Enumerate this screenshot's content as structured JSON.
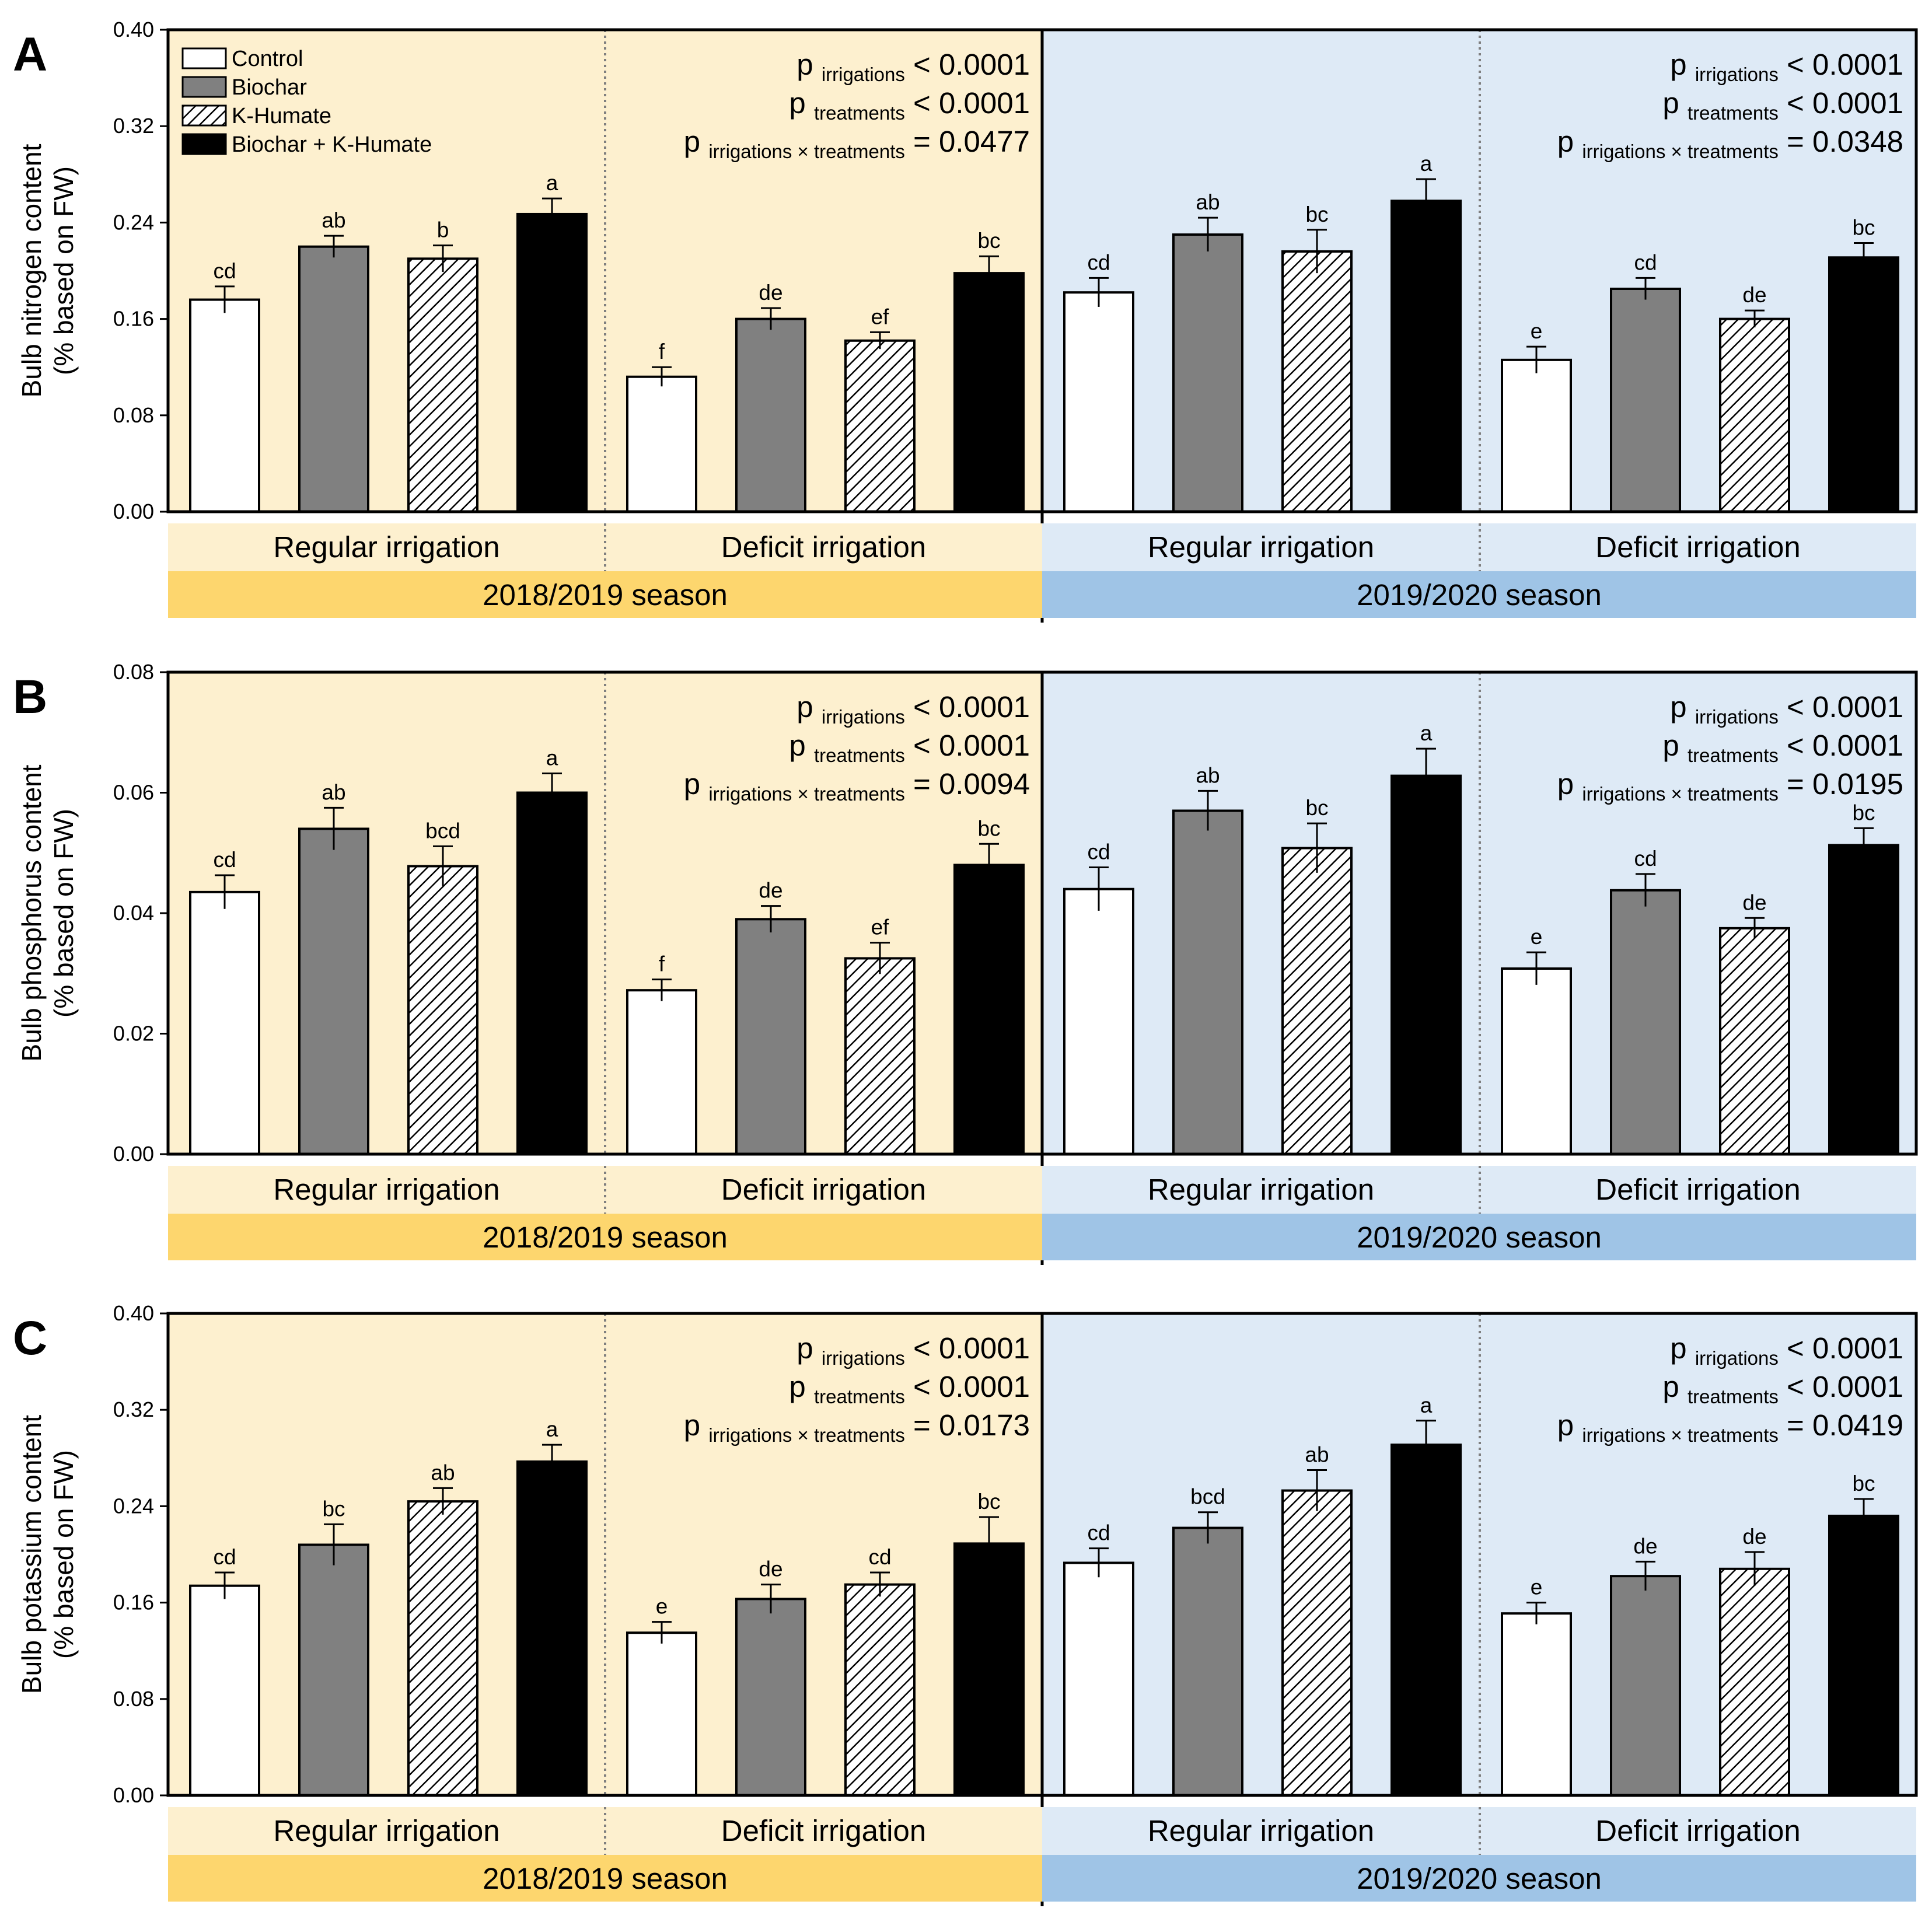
{
  "colors": {
    "season1_bg": "#fdf0cf",
    "season2_bg": "#deeaf6",
    "season1_band_light": "#fdf0cf",
    "season1_band_dark": "#fdd66e",
    "season2_band_light": "#deeaf6",
    "season2_band_dark": "#9fc4e6",
    "control": "#ffffff",
    "biochar": "#808080",
    "khumate": "#ffffff",
    "combo": "#000000"
  },
  "legend": {
    "control": "Control",
    "biochar": "Biochar",
    "khumate": "K-Humate",
    "combo": "Biochar + K-Humate"
  },
  "labels": {
    "regular": "Regular irrigation",
    "deficit": "Deficit irrigation",
    "season1": "2018/2019 season",
    "season2": "2019/2020 season",
    "p": "p",
    "sub_irr": "irrigations",
    "sub_trt": "treatments",
    "sub_int": "irrigations × treatments",
    "lt": "< 0.0001"
  },
  "chart_data": [
    {
      "type": "bar",
      "panel": "A",
      "ylabel_line1": "Bulb nitrogen content",
      "ylabel_line2": "(% based on FW)",
      "ylim": [
        0,
        0.4
      ],
      "yticks": [
        "0.00",
        "0.08",
        "0.16",
        "0.24",
        "0.32",
        "0.40"
      ],
      "series": [
        "Control",
        "Biochar",
        "K-Humate",
        "Biochar + K-Humate"
      ],
      "groups": [
        {
          "season": "2018/2019 season",
          "irrigation": "Regular irrigation",
          "values": [
            0.176,
            0.22,
            0.21,
            0.247
          ],
          "errors": [
            0.011,
            0.009,
            0.011,
            0.013
          ],
          "letters": [
            "cd",
            "ab",
            "b",
            "a"
          ]
        },
        {
          "season": "2018/2019 season",
          "irrigation": "Deficit irrigation",
          "values": [
            0.112,
            0.16,
            0.142,
            0.198
          ],
          "errors": [
            0.008,
            0.009,
            0.007,
            0.014
          ],
          "letters": [
            "f",
            "de",
            "ef",
            "bc"
          ]
        },
        {
          "season": "2019/2020 season",
          "irrigation": "Regular irrigation",
          "values": [
            0.182,
            0.23,
            0.216,
            0.258
          ],
          "errors": [
            0.012,
            0.014,
            0.018,
            0.018
          ],
          "letters": [
            "cd",
            "ab",
            "bc",
            "a"
          ]
        },
        {
          "season": "2019/2020 season",
          "irrigation": "Deficit irrigation",
          "values": [
            0.126,
            0.185,
            0.16,
            0.211
          ],
          "errors": [
            0.011,
            0.009,
            0.007,
            0.012
          ],
          "letters": [
            "e",
            "cd",
            "de",
            "bc"
          ]
        }
      ],
      "stats": [
        {
          "season": "2018/2019 season",
          "p_irrigations": "< 0.0001",
          "p_treatments": "< 0.0001",
          "p_interaction": "= 0.0477"
        },
        {
          "season": "2019/2020 season",
          "p_irrigations": "< 0.0001",
          "p_treatments": "< 0.0001",
          "p_interaction": "= 0.0348"
        }
      ]
    },
    {
      "type": "bar",
      "panel": "B",
      "ylabel_line1": "Bulb phosphorus content",
      "ylabel_line2": "(% based on FW)",
      "ylim": [
        0,
        0.08
      ],
      "yticks": [
        "0.00",
        "0.02",
        "0.04",
        "0.06",
        "0.08"
      ],
      "series": [
        "Control",
        "Biochar",
        "K-Humate",
        "Biochar + K-Humate"
      ],
      "groups": [
        {
          "season": "2018/2019 season",
          "irrigation": "Regular irrigation",
          "values": [
            0.0435,
            0.054,
            0.0478,
            0.06
          ],
          "errors": [
            0.0028,
            0.0035,
            0.0033,
            0.0032
          ],
          "letters": [
            "cd",
            "ab",
            "bcd",
            "a"
          ]
        },
        {
          "season": "2018/2019 season",
          "irrigation": "Deficit irrigation",
          "values": [
            0.0272,
            0.039,
            0.0325,
            0.048
          ],
          "errors": [
            0.0018,
            0.0022,
            0.0026,
            0.0035
          ],
          "letters": [
            "f",
            "de",
            "ef",
            "bc"
          ]
        },
        {
          "season": "2019/2020 season",
          "irrigation": "Regular irrigation",
          "values": [
            0.044,
            0.057,
            0.0508,
            0.0628
          ],
          "errors": [
            0.0036,
            0.0033,
            0.0041,
            0.0045
          ],
          "letters": [
            "cd",
            "ab",
            "bc",
            "a"
          ]
        },
        {
          "season": "2019/2020 season",
          "irrigation": "Deficit irrigation",
          "values": [
            0.0308,
            0.0438,
            0.0375,
            0.0513
          ],
          "errors": [
            0.0027,
            0.0027,
            0.0017,
            0.0028
          ],
          "letters": [
            "e",
            "cd",
            "de",
            "bc"
          ]
        }
      ],
      "stats": [
        {
          "season": "2018/2019 season",
          "p_irrigations": "< 0.0001",
          "p_treatments": "< 0.0001",
          "p_interaction": "= 0.0094"
        },
        {
          "season": "2019/2020 season",
          "p_irrigations": "< 0.0001",
          "p_treatments": "< 0.0001",
          "p_interaction": "= 0.0195"
        }
      ]
    },
    {
      "type": "bar",
      "panel": "C",
      "ylabel_line1": "Bulb potassium content",
      "ylabel_line2": "(% based on FW)",
      "ylim": [
        0,
        0.4
      ],
      "yticks": [
        "0.00",
        "0.08",
        "0.16",
        "0.24",
        "0.32",
        "0.40"
      ],
      "series": [
        "Control",
        "Biochar",
        "K-Humate",
        "Biochar + K-Humate"
      ],
      "groups": [
        {
          "season": "2018/2019 season",
          "irrigation": "Regular irrigation",
          "values": [
            0.174,
            0.208,
            0.244,
            0.277
          ],
          "errors": [
            0.011,
            0.017,
            0.011,
            0.014
          ],
          "letters": [
            "cd",
            "bc",
            "ab",
            "a"
          ]
        },
        {
          "season": "2018/2019 season",
          "irrigation": "Deficit irrigation",
          "values": [
            0.135,
            0.163,
            0.175,
            0.209
          ],
          "errors": [
            0.009,
            0.012,
            0.01,
            0.022
          ],
          "letters": [
            "e",
            "de",
            "cd",
            "bc"
          ]
        },
        {
          "season": "2019/2020 season",
          "irrigation": "Regular irrigation",
          "values": [
            0.193,
            0.222,
            0.253,
            0.291
          ],
          "errors": [
            0.012,
            0.013,
            0.017,
            0.02
          ],
          "letters": [
            "cd",
            "bcd",
            "ab",
            "a"
          ]
        },
        {
          "season": "2019/2020 season",
          "irrigation": "Deficit irrigation",
          "values": [
            0.151,
            0.182,
            0.188,
            0.232
          ],
          "errors": [
            0.009,
            0.012,
            0.014,
            0.014
          ],
          "letters": [
            "e",
            "de",
            "de",
            "bc"
          ]
        }
      ],
      "stats": [
        {
          "season": "2018/2019 season",
          "p_irrigations": "< 0.0001",
          "p_treatments": "< 0.0001",
          "p_interaction": "= 0.0173"
        },
        {
          "season": "2019/2020 season",
          "p_irrigations": "< 0.0001",
          "p_treatments": "< 0.0001",
          "p_interaction": "= 0.0419"
        }
      ]
    }
  ]
}
